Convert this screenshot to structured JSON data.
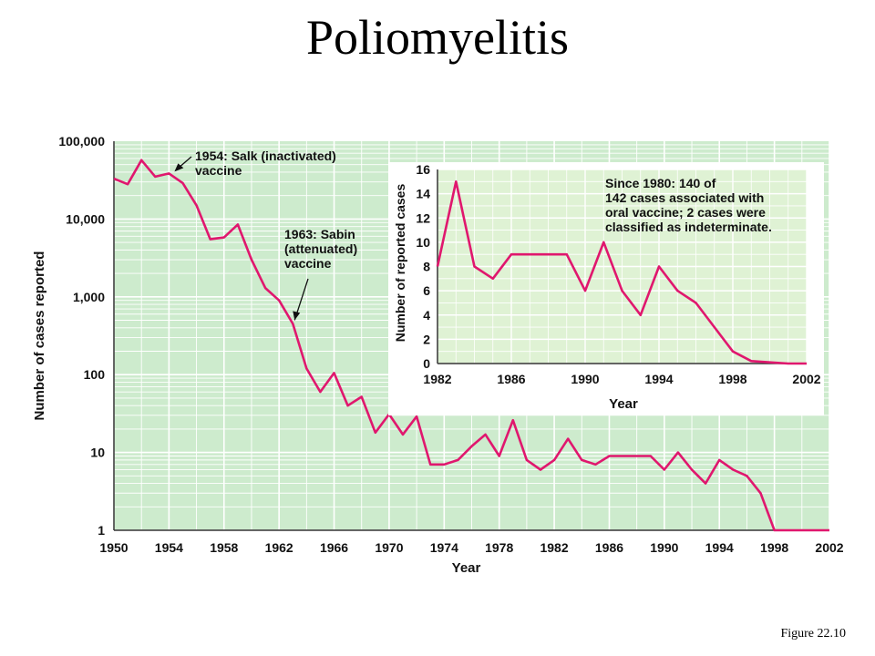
{
  "page": {
    "title": "Poliomyelitis",
    "caption": "Figure 22.10"
  },
  "colors": {
    "background": "#cdebcd",
    "grid": "#ffffff",
    "line": "#e0176e",
    "text": "#111111"
  },
  "chart_data": [
    {
      "type": "line",
      "xlabel": "Year",
      "ylabel": "Number of cases reported",
      "yscale": "log",
      "xlim": [
        1950,
        2002
      ],
      "ylim": [
        1,
        100000
      ],
      "xticks": [
        1950,
        1954,
        1958,
        1962,
        1966,
        1970,
        1974,
        1978,
        1982,
        1986,
        1990,
        1994,
        1998,
        2002
      ],
      "yticks": [
        1,
        10,
        100,
        1000,
        10000,
        100000
      ],
      "ytick_labels": [
        "1",
        "10",
        "100",
        "1,000",
        "10,000",
        "100,000"
      ],
      "grid": true,
      "series": [
        {
          "x": [
            1950,
            1951,
            1952,
            1953,
            1954,
            1955,
            1956,
            1957,
            1958,
            1959,
            1960,
            1961,
            1962,
            1963,
            1964,
            1965,
            1966,
            1967,
            1968,
            1969,
            1970,
            1971,
            1972,
            1973,
            1974,
            1975,
            1976,
            1977,
            1978,
            1979,
            1980,
            1981,
            1982,
            1983,
            1984,
            1985,
            1986,
            1987,
            1988,
            1989,
            1990,
            1991,
            1992,
            1993,
            1994,
            1995,
            1996,
            1997,
            1998,
            1999,
            2000,
            2001,
            2002
          ],
          "y": [
            33000,
            28000,
            57000,
            35000,
            38500,
            29000,
            15000,
            5500,
            5800,
            8500,
            3000,
            1300,
            900,
            450,
            120,
            60,
            105,
            40,
            52,
            18,
            31,
            17,
            29,
            7,
            7,
            8,
            12,
            17,
            9,
            26,
            8,
            6,
            8,
            15,
            8,
            7,
            9,
            9,
            9,
            9,
            6,
            10,
            6,
            4,
            8,
            6,
            5,
            3,
            1,
            1,
            1,
            1,
            1
          ]
        }
      ],
      "annotations": [
        {
          "text_lines": [
            "1954: Salk (inactivated)",
            "vaccine"
          ],
          "points_to": [
            1954,
            38500
          ]
        },
        {
          "text_lines": [
            "1963: Sabin",
            "(attenuated)",
            "vaccine"
          ],
          "points_to": [
            1963,
            450
          ]
        }
      ]
    },
    {
      "type": "line",
      "xlabel": "Year",
      "ylabel": "Number of reported cases",
      "xlim": [
        1982,
        2002
      ],
      "ylim": [
        0,
        16
      ],
      "xticks": [
        1982,
        1986,
        1990,
        1994,
        1998,
        2002
      ],
      "yticks": [
        0,
        2,
        4,
        6,
        8,
        10,
        12,
        14,
        16
      ],
      "grid": true,
      "series": [
        {
          "x": [
            1982,
            1983,
            1984,
            1985,
            1986,
            1987,
            1988,
            1989,
            1990,
            1991,
            1992,
            1993,
            1994,
            1995,
            1996,
            1997,
            1998,
            1999,
            2000,
            2001,
            2002
          ],
          "y": [
            8,
            15,
            8,
            7,
            9,
            9,
            9,
            9,
            6,
            10,
            6,
            4,
            8,
            6,
            5,
            3,
            1,
            0.2,
            0.1,
            0,
            0
          ]
        }
      ],
      "annotations": [
        {
          "text_lines": [
            "Since 1980: 140 of",
            "142 cases associated with",
            "oral vaccine; 2 cases were",
            "classified as indeterminate."
          ]
        }
      ]
    }
  ]
}
